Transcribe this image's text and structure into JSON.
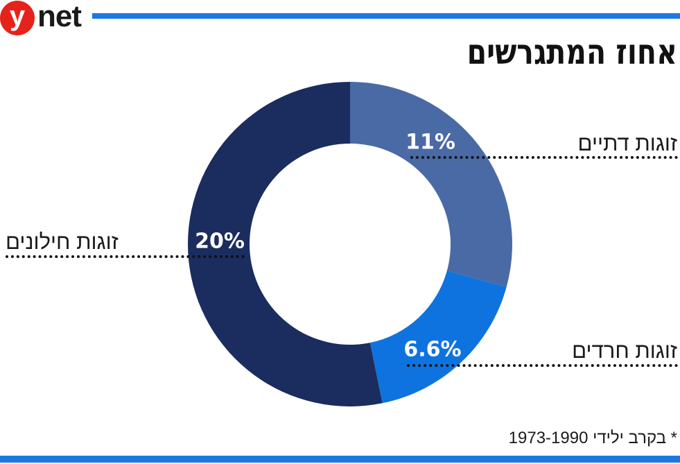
{
  "header": {
    "logo_y": "y",
    "logo_net": "net",
    "title": "אחוז המתגרשים"
  },
  "footnote": "* בקרב ילידי 1973-1990",
  "colors": {
    "brand_red": "#e5231b",
    "rule_blue": "#1c79e0"
  },
  "chart_data": {
    "type": "pie",
    "variant": "donut",
    "slices": [
      {
        "label": "זוגות דתיים",
        "value": 11,
        "display": "11%",
        "color": "#4a6aa5"
      },
      {
        "label": "זוגות חרדים",
        "value": 6.6,
        "display": "6.6%",
        "color": "#0f73df"
      },
      {
        "label": "זוגות חילונים",
        "value": 20,
        "display": "20%",
        "color": "#1b2c5f"
      }
    ]
  }
}
